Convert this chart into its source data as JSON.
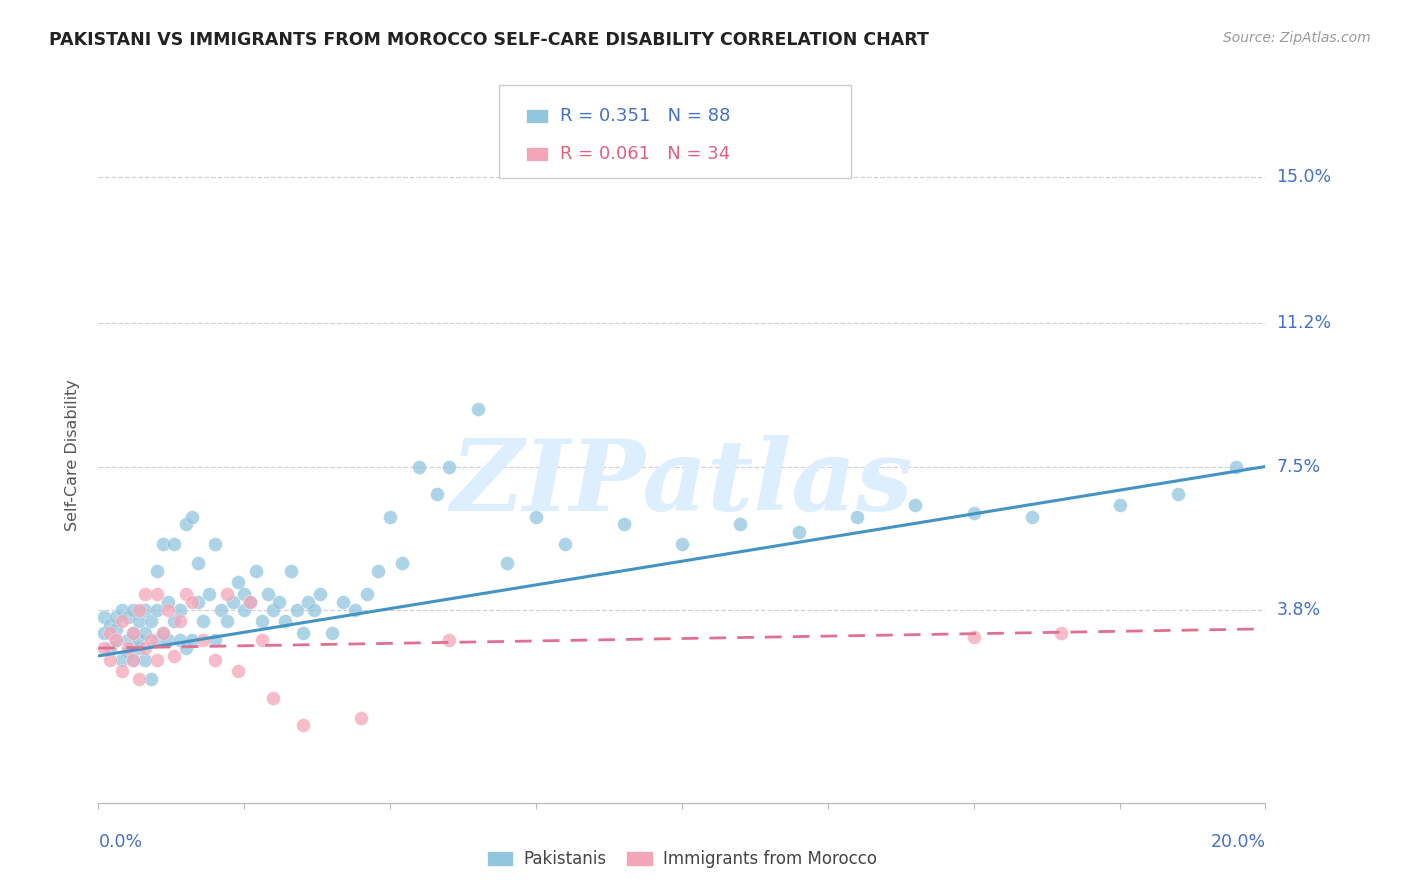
{
  "title": "PAKISTANI VS IMMIGRANTS FROM MOROCCO SELF-CARE DISABILITY CORRELATION CHART",
  "source": "Source: ZipAtlas.com",
  "ylabel": "Self-Care Disability",
  "legend_pakistanis": "Pakistanis",
  "legend_morocco": "Immigrants from Morocco",
  "r_pakistani": 0.351,
  "n_pakistani": 88,
  "r_morocco": 0.061,
  "n_morocco": 34,
  "ytick_labels": [
    "15.0%",
    "11.2%",
    "7.5%",
    "3.8%"
  ],
  "ytick_values": [
    0.15,
    0.112,
    0.075,
    0.038
  ],
  "xmin": 0.0,
  "xmax": 0.2,
  "ymin": -0.012,
  "ymax": 0.168,
  "blue_color": "#92c5de",
  "pink_color": "#f4a6b8",
  "blue_line_color": "#4393c3",
  "pink_line_color": "#e07090",
  "background_color": "#ffffff",
  "watermark_text": "ZIPatlas",
  "watermark_color": "#ddeeff",
  "pakistani_x": [
    0.001,
    0.001,
    0.002,
    0.002,
    0.003,
    0.003,
    0.003,
    0.004,
    0.004,
    0.005,
    0.005,
    0.005,
    0.006,
    0.006,
    0.006,
    0.007,
    0.007,
    0.007,
    0.008,
    0.008,
    0.008,
    0.009,
    0.009,
    0.01,
    0.01,
    0.01,
    0.011,
    0.011,
    0.012,
    0.012,
    0.013,
    0.013,
    0.014,
    0.014,
    0.015,
    0.015,
    0.016,
    0.016,
    0.017,
    0.017,
    0.018,
    0.019,
    0.02,
    0.02,
    0.021,
    0.022,
    0.023,
    0.024,
    0.025,
    0.025,
    0.026,
    0.027,
    0.028,
    0.029,
    0.03,
    0.031,
    0.032,
    0.033,
    0.034,
    0.035,
    0.036,
    0.037,
    0.038,
    0.04,
    0.042,
    0.044,
    0.046,
    0.048,
    0.05,
    0.052,
    0.055,
    0.058,
    0.06,
    0.065,
    0.07,
    0.075,
    0.08,
    0.09,
    0.1,
    0.11,
    0.12,
    0.13,
    0.14,
    0.15,
    0.16,
    0.175,
    0.185,
    0.195
  ],
  "pakistani_y": [
    0.032,
    0.036,
    0.028,
    0.034,
    0.03,
    0.033,
    0.036,
    0.025,
    0.038,
    0.027,
    0.03,
    0.036,
    0.025,
    0.032,
    0.038,
    0.028,
    0.03,
    0.035,
    0.025,
    0.032,
    0.038,
    0.02,
    0.035,
    0.048,
    0.03,
    0.038,
    0.055,
    0.032,
    0.03,
    0.04,
    0.035,
    0.055,
    0.03,
    0.038,
    0.028,
    0.06,
    0.03,
    0.062,
    0.04,
    0.05,
    0.035,
    0.042,
    0.03,
    0.055,
    0.038,
    0.035,
    0.04,
    0.045,
    0.038,
    0.042,
    0.04,
    0.048,
    0.035,
    0.042,
    0.038,
    0.04,
    0.035,
    0.048,
    0.038,
    0.032,
    0.04,
    0.038,
    0.042,
    0.032,
    0.04,
    0.038,
    0.042,
    0.048,
    0.062,
    0.05,
    0.075,
    0.068,
    0.075,
    0.09,
    0.05,
    0.062,
    0.055,
    0.06,
    0.055,
    0.06,
    0.058,
    0.062,
    0.065,
    0.063,
    0.062,
    0.065,
    0.068,
    0.075
  ],
  "morocco_x": [
    0.001,
    0.002,
    0.002,
    0.003,
    0.004,
    0.004,
    0.005,
    0.006,
    0.006,
    0.007,
    0.007,
    0.008,
    0.008,
    0.009,
    0.01,
    0.01,
    0.011,
    0.012,
    0.013,
    0.014,
    0.015,
    0.016,
    0.018,
    0.02,
    0.022,
    0.024,
    0.026,
    0.028,
    0.03,
    0.035,
    0.045,
    0.06,
    0.15,
    0.165
  ],
  "morocco_y": [
    0.028,
    0.032,
    0.025,
    0.03,
    0.022,
    0.035,
    0.028,
    0.025,
    0.032,
    0.02,
    0.038,
    0.028,
    0.042,
    0.03,
    0.025,
    0.042,
    0.032,
    0.038,
    0.026,
    0.035,
    0.042,
    0.04,
    0.03,
    0.025,
    0.042,
    0.022,
    0.04,
    0.03,
    0.015,
    0.008,
    0.01,
    0.03,
    0.031,
    0.032
  ],
  "p_line_x0": 0.0,
  "p_line_x1": 0.2,
  "p_line_y0": 0.026,
  "p_line_y1": 0.075,
  "m_line_x0": 0.0,
  "m_line_x1": 0.2,
  "m_line_y0": 0.028,
  "m_line_y1": 0.033
}
